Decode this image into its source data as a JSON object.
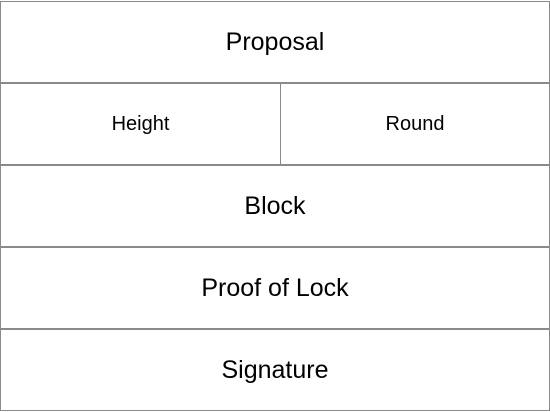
{
  "diagram": {
    "rows": [
      {
        "label": "Proposal"
      },
      {
        "cells": [
          "Height",
          "Round"
        ]
      },
      {
        "label": "Block"
      },
      {
        "label": "Proof of Lock"
      },
      {
        "label": "Signature"
      }
    ]
  }
}
